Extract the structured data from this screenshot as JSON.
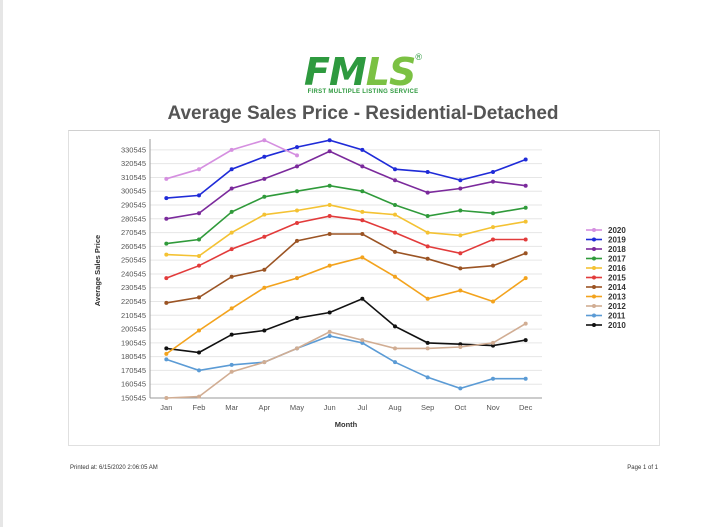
{
  "logo": {
    "text": "FMLS",
    "registered": "®",
    "subtitle": "FIRST MULTIPLE LISTING SERVICE",
    "colors": [
      "#2e9a3f",
      "#7bc143"
    ]
  },
  "footer": {
    "printed_label": "Printed at:",
    "printed_value": "6/15/2020 2:06:05 AM",
    "page": "Page 1 of 1"
  },
  "chart_data": {
    "type": "line",
    "title": "Average Sales Price - Residential-Detached",
    "xlabel": "Month",
    "ylabel": "Average Sales Price",
    "categories": [
      "Jan",
      "Feb",
      "Mar",
      "Apr",
      "May",
      "Jun",
      "Jul",
      "Aug",
      "Sep",
      "Oct",
      "Nov",
      "Dec"
    ],
    "yticks": [
      330545,
      320545,
      310545,
      300545,
      290545,
      280545,
      270545,
      260545,
      250545,
      240545,
      230545,
      220545,
      210545,
      200545,
      190545,
      180545,
      170545,
      160545,
      150545
    ],
    "ylim": [
      150545,
      335545
    ],
    "grid": "horizontal",
    "legend_position": "right",
    "series": [
      {
        "name": "2020",
        "color": "#d58fe0",
        "values": [
          309545,
          316545,
          330545,
          337545,
          326545,
          null,
          null,
          null,
          null,
          null,
          null,
          null
        ]
      },
      {
        "name": "2019",
        "color": "#1f2bd8",
        "values": [
          295545,
          297545,
          316545,
          325545,
          332545,
          337545,
          330545,
          316545,
          314545,
          308545,
          314545,
          323545
        ]
      },
      {
        "name": "2018",
        "color": "#7b2a9c",
        "values": [
          280545,
          284545,
          302545,
          309545,
          318545,
          329545,
          318545,
          308545,
          299545,
          302545,
          307545,
          304545
        ]
      },
      {
        "name": "2017",
        "color": "#2f9a3a",
        "values": [
          262545,
          265545,
          285545,
          296545,
          300545,
          304545,
          300545,
          290545,
          282545,
          286545,
          284545,
          288545
        ]
      },
      {
        "name": "2016",
        "color": "#f4c233",
        "values": [
          254545,
          253545,
          270545,
          283545,
          286545,
          290545,
          285545,
          283545,
          270545,
          268545,
          274545,
          278545
        ]
      },
      {
        "name": "2015",
        "color": "#e23b3b",
        "values": [
          237545,
          246545,
          258545,
          267545,
          277545,
          282545,
          279545,
          270545,
          260545,
          255545,
          265545,
          265545
        ]
      },
      {
        "name": "2014",
        "color": "#9b5424",
        "values": [
          219545,
          223545,
          238545,
          243545,
          264545,
          269545,
          269545,
          256545,
          251545,
          244545,
          246545,
          255545
        ]
      },
      {
        "name": "2013",
        "color": "#f3a31d",
        "values": [
          182545,
          199545,
          215545,
          230545,
          237545,
          246545,
          252545,
          238545,
          222545,
          228545,
          220545,
          237545
        ]
      },
      {
        "name": "2012",
        "color": "#d1ad93",
        "values": [
          150545,
          151545,
          169545,
          176545,
          186545,
          198545,
          192545,
          186545,
          186545,
          187545,
          190545,
          204545
        ]
      },
      {
        "name": "2011",
        "color": "#5b9bd5",
        "values": [
          178545,
          170545,
          174545,
          176545,
          186545,
          195545,
          190545,
          176545,
          165545,
          157545,
          164545,
          164545
        ]
      },
      {
        "name": "2010",
        "color": "#111111",
        "values": [
          186545,
          183545,
          196545,
          199545,
          208545,
          212545,
          222545,
          202545,
          190545,
          189545,
          188545,
          192545
        ]
      }
    ]
  }
}
